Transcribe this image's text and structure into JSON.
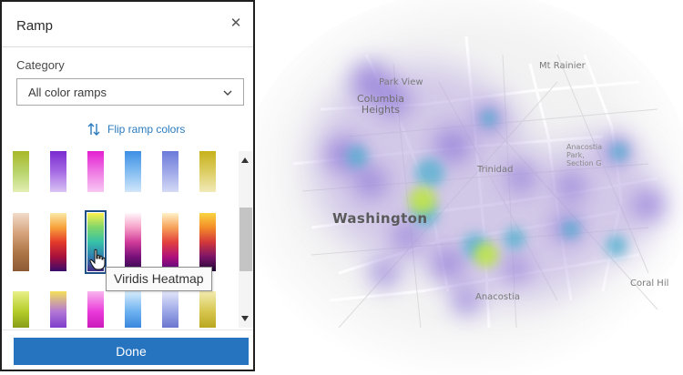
{
  "panel": {
    "title": "Ramp",
    "close_icon": "close-icon",
    "category_label": "Category",
    "category_select": {
      "value": "All color ramps",
      "icon": "chevron-down-icon"
    },
    "flip_ramp": {
      "label": "Flip ramp colors",
      "icon": "flip-arrows-icon"
    },
    "ramp_rows": [
      [
        {
          "name": "ramp-olive-green",
          "colors": [
            "#a9b82a",
            "#b8d36a",
            "#e3efb4"
          ]
        },
        {
          "name": "ramp-purple-violet",
          "colors": [
            "#7a2bd0",
            "#a66be3",
            "#d9c4f4"
          ]
        },
        {
          "name": "ramp-magenta",
          "colors": [
            "#e41fd1",
            "#ee78e3",
            "#f8c8f3"
          ]
        },
        {
          "name": "ramp-blue-sky",
          "colors": [
            "#3d8fe5",
            "#83bcf1",
            "#d1e6fa"
          ]
        },
        {
          "name": "ramp-periwinkle",
          "colors": [
            "#6c7ad9",
            "#9ea8e8",
            "#d5daf6"
          ]
        },
        {
          "name": "ramp-mustard",
          "colors": [
            "#c7b21b",
            "#dccd63",
            "#f1e9b8"
          ]
        }
      ],
      [
        {
          "name": "ramp-tan-brown",
          "colors": [
            "#f2dccb",
            "#d7a57f",
            "#b07848",
            "#8c5a36"
          ]
        },
        {
          "name": "ramp-red-purple",
          "colors": [
            "#fbe9a8",
            "#f7a23a",
            "#e43a2a",
            "#a8103c",
            "#3b0b6b"
          ]
        },
        {
          "name": "ramp-viridis",
          "colors": [
            "#fcef4e",
            "#7ed66a",
            "#36c1a8",
            "#2e7fb0",
            "#432a84"
          ]
        },
        {
          "name": "ramp-pink-purple",
          "colors": [
            "#fff7fa",
            "#f6a0c8",
            "#d13b99",
            "#79117a",
            "#2c0a4a"
          ]
        },
        {
          "name": "ramp-magma",
          "colors": [
            "#fff2c8",
            "#f7a25a",
            "#e3413e",
            "#b0107a",
            "#4a0a7c"
          ]
        },
        {
          "name": "ramp-inferno",
          "colors": [
            "#f9d541",
            "#f48c28",
            "#d3383a",
            "#7d1468",
            "#1d0632"
          ]
        }
      ],
      [
        {
          "name": "ramp-lime-olive",
          "colors": [
            "#e8f08a",
            "#b4cc28",
            "#7d8e12"
          ]
        },
        {
          "name": "ramp-violet-gold",
          "colors": [
            "#f4e05a",
            "#b277d6",
            "#6e2cc8"
          ]
        },
        {
          "name": "ramp-fuchsia",
          "colors": [
            "#f8b6ee",
            "#ea3ad9",
            "#c211b1"
          ]
        },
        {
          "name": "ramp-azure",
          "colors": [
            "#d6ecfc",
            "#6db1f0",
            "#2a7bd8"
          ]
        },
        {
          "name": "ramp-lavender-blue",
          "colors": [
            "#e3e6fa",
            "#9aa6e6",
            "#5d68c9"
          ]
        },
        {
          "name": "ramp-gold",
          "colors": [
            "#f4ecb2",
            "#d6c64e",
            "#b19e12"
          ]
        }
      ]
    ],
    "selected_ramp": "ramp-viridis",
    "tooltip": "Viridis Heatmap",
    "done_label": "Done",
    "accent_color": "#2673c0"
  },
  "map": {
    "labels": {
      "park_view": "Park View",
      "columbia_heights": "Columbia\nHeights",
      "mt_rainier": "Mt Rainier",
      "trinidad": "Trinidad",
      "washington": "Washington",
      "anacostia_park": "Anacostia\nPark,\nSection G",
      "anacostia": "Anacostia",
      "coral_hills": "Coral Hil"
    }
  }
}
